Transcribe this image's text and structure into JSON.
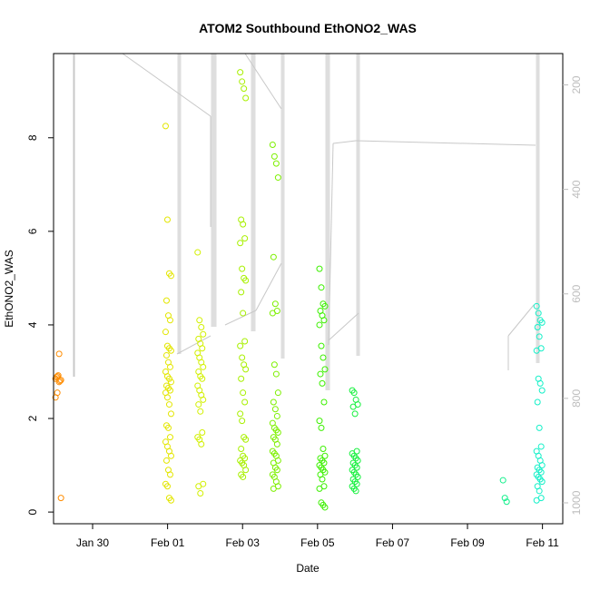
{
  "chart_data": {
    "type": "scatter",
    "title": "ATOM2 Southbound EthONO2_WAS",
    "xlabel": "Date",
    "ylabel": "EthONO2_WAS",
    "x_ticks": [
      "Jan 30",
      "Feb 01",
      "Feb 03",
      "Feb 05",
      "Feb 07",
      "Feb 09",
      "Feb 11"
    ],
    "xlim": [
      "2017-01-28T23:00",
      "2017-02-11T13:00"
    ],
    "ylim": [
      -0.25,
      9.8
    ],
    "y_ticks": [
      0,
      2,
      4,
      6,
      8
    ],
    "right_axis": {
      "ticks": [
        200,
        400,
        600,
        800,
        1000
      ],
      "lim": [
        1040,
        140
      ],
      "reversed": true,
      "color": "#bdbdbd",
      "series_description": "pressure altitude trace"
    },
    "marker": "open-circle",
    "grid": false,
    "legend": "none",
    "series": [
      {
        "x": "2017-01-29T02:00",
        "color": "#ff8c00",
        "values": [
          2.85,
          2.9,
          2.78,
          2.82,
          2.88,
          2.92,
          2.8,
          2.45,
          2.55,
          3.38,
          0.3
        ]
      },
      {
        "x": "2017-02-01T00:30",
        "color": "#e3e600",
        "values": [
          8.25,
          6.25,
          5.1,
          5.05,
          4.52,
          4.2,
          4.1,
          3.85,
          3.55,
          3.5,
          3.45,
          3.35,
          3.2,
          3.1,
          3.0,
          2.9,
          2.85,
          2.78,
          2.7,
          2.65,
          2.6,
          2.55,
          2.45,
          2.3,
          2.1,
          1.85,
          1.8,
          1.6,
          1.5,
          1.4,
          1.3,
          1.2,
          1.1,
          0.9,
          0.8,
          0.6,
          0.55,
          0.3,
          0.25
        ]
      },
      {
        "x": "2017-02-01T21:00",
        "color": "#d2f000",
        "values": [
          5.55,
          4.1,
          3.95,
          3.8,
          3.7,
          3.6,
          3.5,
          3.4,
          3.3,
          3.2,
          3.1,
          3.0,
          2.9,
          2.85,
          2.7,
          2.6,
          2.5,
          2.4,
          2.3,
          2.15,
          1.7,
          1.6,
          1.55,
          1.45,
          0.6,
          0.55,
          0.4
        ]
      },
      {
        "x": "2017-02-03T00:15",
        "color": "#a8f000",
        "values": [
          9.4,
          9.2,
          9.05,
          8.85,
          6.25,
          6.15,
          5.85,
          5.75,
          5.2,
          5.0,
          4.95,
          4.7,
          4.25,
          3.65,
          3.55,
          3.3,
          3.15,
          3.05,
          2.85,
          2.55,
          2.35,
          2.1,
          1.95,
          1.6,
          1.55,
          1.35,
          1.2,
          1.15,
          1.1,
          1.05,
          1.0,
          0.9,
          0.8,
          0.75
        ]
      },
      {
        "x": "2017-02-03T21:00",
        "color": "#7df000",
        "values": [
          7.85,
          7.6,
          7.45,
          7.15,
          5.45,
          4.45,
          4.3,
          4.25,
          3.15,
          2.95,
          2.55,
          2.35,
          2.2,
          2.05,
          1.9,
          1.8,
          1.75,
          1.7,
          1.6,
          1.55,
          1.45,
          1.3,
          1.25,
          1.2,
          1.1,
          1.05,
          0.95,
          0.9,
          0.8,
          0.75,
          0.65,
          0.55,
          0.5
        ]
      },
      {
        "x": "2017-02-05T03:00",
        "color": "#3cf000",
        "values": [
          5.2,
          4.8,
          4.45,
          4.4,
          4.3,
          4.2,
          4.1,
          4.0,
          3.55,
          3.3,
          3.05,
          2.95,
          2.75,
          2.35,
          1.95,
          1.8,
          1.35,
          1.2,
          1.15,
          1.1,
          1.05,
          1.0,
          0.95,
          0.9,
          0.85,
          0.8,
          0.7,
          0.55,
          0.5,
          0.2,
          0.15,
          0.1
        ]
      },
      {
        "x": "2017-02-06T00:00",
        "color": "#14f03c",
        "values": [
          2.6,
          2.55,
          2.4,
          2.3,
          2.25,
          2.1,
          1.3,
          1.25,
          1.2,
          1.15,
          1.1,
          1.05,
          1.0,
          0.95,
          0.9,
          0.85,
          0.8,
          0.75,
          0.7,
          0.65,
          0.6,
          0.55,
          0.5,
          0.45
        ]
      },
      {
        "x": "2017-02-10T00:30",
        "color": "#14f08c",
        "values": [
          0.68,
          0.3,
          0.22
        ]
      },
      {
        "x": "2017-02-10T22:00",
        "color": "#14f0c8",
        "values": [
          4.4,
          4.25,
          4.1,
          4.05,
          3.95,
          3.75,
          3.5,
          3.45,
          2.85,
          2.75,
          2.6,
          2.35,
          1.8,
          1.4,
          1.3,
          1.2,
          1.1,
          1.0,
          0.95,
          0.9,
          0.85,
          0.8,
          0.75,
          0.7,
          0.65,
          0.55,
          0.45,
          0.3,
          0.25
        ]
      }
    ]
  }
}
